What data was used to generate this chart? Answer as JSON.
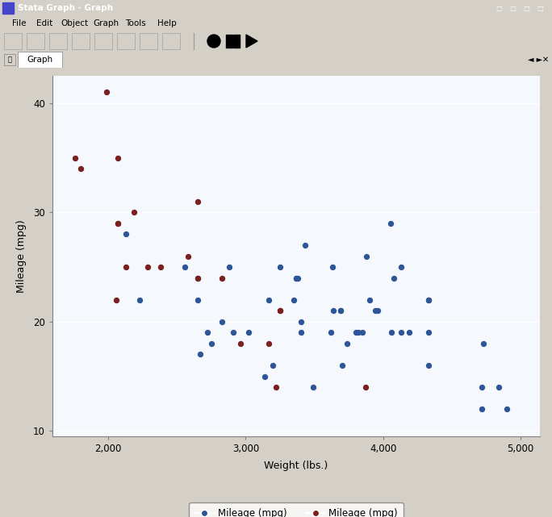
{
  "xlabel": "Weight (lbs.)",
  "ylabel": "Mileage (mpg)",
  "xlim": [
    1595,
    5140
  ],
  "ylim": [
    9.5,
    42.5
  ],
  "xticks": [
    2000,
    3000,
    4000,
    5000
  ],
  "yticks": [
    10,
    20,
    30,
    40
  ],
  "xticklabels": [
    "2,000",
    "3,000",
    "4,000",
    "5,000"
  ],
  "yticklabels": [
    "10",
    "20",
    "30",
    "40"
  ],
  "plot_bg_color": "#e8eef5",
  "white_plot_color": "#f5f8fc",
  "grid_color": "#ffffff",
  "marker_size": 28,
  "blue_color": "#2e5597",
  "red_color": "#7b2020",
  "legend_label_blue": "Mileage (mpg)",
  "legend_label_red": "Mileage (mpg)",
  "blue_x": [
    3170,
    2670,
    2230,
    2830,
    3140,
    4730,
    3880,
    3400,
    4330,
    3850,
    3490,
    4840,
    4720,
    3640,
    4054,
    3700,
    3900,
    4330,
    4080,
    2720,
    3620,
    3200,
    2750,
    3430,
    3630,
    3960,
    4130,
    2130,
    3940,
    4330,
    4190,
    2650,
    3350,
    3690,
    3370,
    4060,
    4130,
    3370,
    2910,
    3020,
    2650,
    3250,
    3690,
    3820,
    3800,
    3380,
    2880,
    3400,
    4900,
    4330,
    3740,
    4720,
    2560
  ],
  "blue_y": [
    22,
    17,
    22,
    20,
    15,
    18,
    26,
    20,
    16,
    19,
    14,
    14,
    14,
    21,
    29,
    16,
    22,
    22,
    24,
    19,
    19,
    16,
    18,
    27,
    25,
    21,
    25,
    28,
    21,
    19,
    19,
    24,
    22,
    21,
    24,
    19,
    19,
    24,
    19,
    19,
    22,
    25,
    21,
    19,
    19,
    24,
    25,
    19,
    12,
    22,
    18,
    12,
    25
  ],
  "red_x": [
    2070,
    2650,
    2060,
    1760,
    3250,
    1800,
    3220,
    2070,
    2580,
    3870,
    2290,
    1990,
    2130,
    2190,
    2380,
    3250,
    2830,
    2070,
    2650,
    3170,
    2960
  ],
  "red_y": [
    35,
    31,
    22,
    35,
    21,
    34,
    14,
    29,
    26,
    14,
    25,
    41,
    25,
    30,
    25,
    21,
    24,
    29,
    24,
    18,
    18
  ],
  "window_title": "Stata Graph - Graph",
  "menu_items": [
    "File",
    "Edit",
    "Object",
    "Graph",
    "Tools",
    "Help"
  ],
  "tab_label": "Graph",
  "title_bar_color": "#00007f",
  "title_bar_text_color": "#ffffff",
  "menu_bar_color": "#d4d0c8",
  "toolbar_color": "#d4d0c8",
  "tab_bar_color": "#d4d0c8",
  "tab_active_color": "#ffffff",
  "bottom_bar_color": "#808080",
  "outer_frame_color": "#d4d0c8",
  "inner_panel_color": "#dce8f5"
}
